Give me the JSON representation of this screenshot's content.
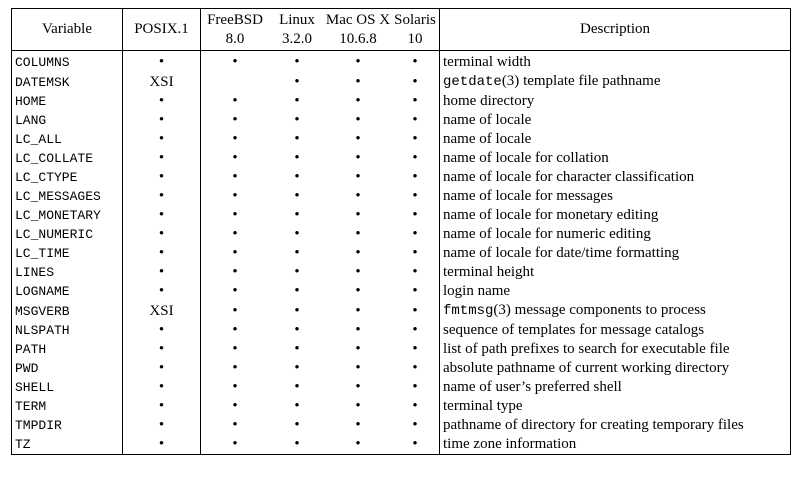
{
  "headers": {
    "variable": "Variable",
    "posix": "POSIX.1",
    "freebsd_name": "FreeBSD",
    "freebsd_ver": "8.0",
    "linux_name": "Linux",
    "linux_ver": "3.2.0",
    "macos_name": "Mac OS X",
    "macos_ver": "10.6.8",
    "solaris_name": "Solaris",
    "solaris_ver": "10",
    "description": "Description"
  },
  "rows": [
    {
      "var": "COLUMNS",
      "posix": "•",
      "freebsd": "•",
      "linux": "•",
      "macos": "•",
      "solaris": "•",
      "desc_code": "",
      "desc_suffix": "",
      "desc": "terminal width"
    },
    {
      "var": "DATEMSK",
      "posix": "XSI",
      "freebsd": "",
      "linux": "•",
      "macos": "•",
      "solaris": "•",
      "desc_code": "getdate",
      "desc_suffix": "(3)",
      "desc": " template file pathname"
    },
    {
      "var": "HOME",
      "posix": "•",
      "freebsd": "•",
      "linux": "•",
      "macos": "•",
      "solaris": "•",
      "desc_code": "",
      "desc_suffix": "",
      "desc": "home directory"
    },
    {
      "var": "LANG",
      "posix": "•",
      "freebsd": "•",
      "linux": "•",
      "macos": "•",
      "solaris": "•",
      "desc_code": "",
      "desc_suffix": "",
      "desc": "name of locale"
    },
    {
      "var": "LC_ALL",
      "posix": "•",
      "freebsd": "•",
      "linux": "•",
      "macos": "•",
      "solaris": "•",
      "desc_code": "",
      "desc_suffix": "",
      "desc": "name of locale"
    },
    {
      "var": "LC_COLLATE",
      "posix": "•",
      "freebsd": "•",
      "linux": "•",
      "macos": "•",
      "solaris": "•",
      "desc_code": "",
      "desc_suffix": "",
      "desc": "name of locale for collation"
    },
    {
      "var": "LC_CTYPE",
      "posix": "•",
      "freebsd": "•",
      "linux": "•",
      "macos": "•",
      "solaris": "•",
      "desc_code": "",
      "desc_suffix": "",
      "desc": "name of locale for character classification"
    },
    {
      "var": "LC_MESSAGES",
      "posix": "•",
      "freebsd": "•",
      "linux": "•",
      "macos": "•",
      "solaris": "•",
      "desc_code": "",
      "desc_suffix": "",
      "desc": "name of locale for messages"
    },
    {
      "var": "LC_MONETARY",
      "posix": "•",
      "freebsd": "•",
      "linux": "•",
      "macos": "•",
      "solaris": "•",
      "desc_code": "",
      "desc_suffix": "",
      "desc": "name of locale for monetary editing"
    },
    {
      "var": "LC_NUMERIC",
      "posix": "•",
      "freebsd": "•",
      "linux": "•",
      "macos": "•",
      "solaris": "•",
      "desc_code": "",
      "desc_suffix": "",
      "desc": "name of locale for numeric editing"
    },
    {
      "var": "LC_TIME",
      "posix": "•",
      "freebsd": "•",
      "linux": "•",
      "macos": "•",
      "solaris": "•",
      "desc_code": "",
      "desc_suffix": "",
      "desc": "name of locale for date/time formatting"
    },
    {
      "var": "LINES",
      "posix": "•",
      "freebsd": "•",
      "linux": "•",
      "macos": "•",
      "solaris": "•",
      "desc_code": "",
      "desc_suffix": "",
      "desc": "terminal height"
    },
    {
      "var": "LOGNAME",
      "posix": "•",
      "freebsd": "•",
      "linux": "•",
      "macos": "•",
      "solaris": "•",
      "desc_code": "",
      "desc_suffix": "",
      "desc": "login name"
    },
    {
      "var": "MSGVERB",
      "posix": "XSI",
      "freebsd": "•",
      "linux": "•",
      "macos": "•",
      "solaris": "•",
      "desc_code": "fmtmsg",
      "desc_suffix": "(3)",
      "desc": " message components to process"
    },
    {
      "var": "NLSPATH",
      "posix": "•",
      "freebsd": "•",
      "linux": "•",
      "macos": "•",
      "solaris": "•",
      "desc_code": "",
      "desc_suffix": "",
      "desc": "sequence of templates for message catalogs"
    },
    {
      "var": "PATH",
      "posix": "•",
      "freebsd": "•",
      "linux": "•",
      "macos": "•",
      "solaris": "•",
      "desc_code": "",
      "desc_suffix": "",
      "desc": "list of path prefixes to search for executable file"
    },
    {
      "var": "PWD",
      "posix": "•",
      "freebsd": "•",
      "linux": "•",
      "macos": "•",
      "solaris": "•",
      "desc_code": "",
      "desc_suffix": "",
      "desc": "absolute pathname of current working directory"
    },
    {
      "var": "SHELL",
      "posix": "•",
      "freebsd": "•",
      "linux": "•",
      "macos": "•",
      "solaris": "•",
      "desc_code": "",
      "desc_suffix": "",
      "desc": "name of user’s preferred shell"
    },
    {
      "var": "TERM",
      "posix": "•",
      "freebsd": "•",
      "linux": "•",
      "macos": "•",
      "solaris": "•",
      "desc_code": "",
      "desc_suffix": "",
      "desc": "terminal type"
    },
    {
      "var": "TMPDIR",
      "posix": "•",
      "freebsd": "•",
      "linux": "•",
      "macos": "•",
      "solaris": "•",
      "desc_code": "",
      "desc_suffix": "",
      "desc": "pathname of directory for creating temporary files"
    },
    {
      "var": "TZ",
      "posix": "•",
      "freebsd": "•",
      "linux": "•",
      "macos": "•",
      "solaris": "•",
      "desc_code": "",
      "desc_suffix": "",
      "desc": "time zone information"
    }
  ]
}
